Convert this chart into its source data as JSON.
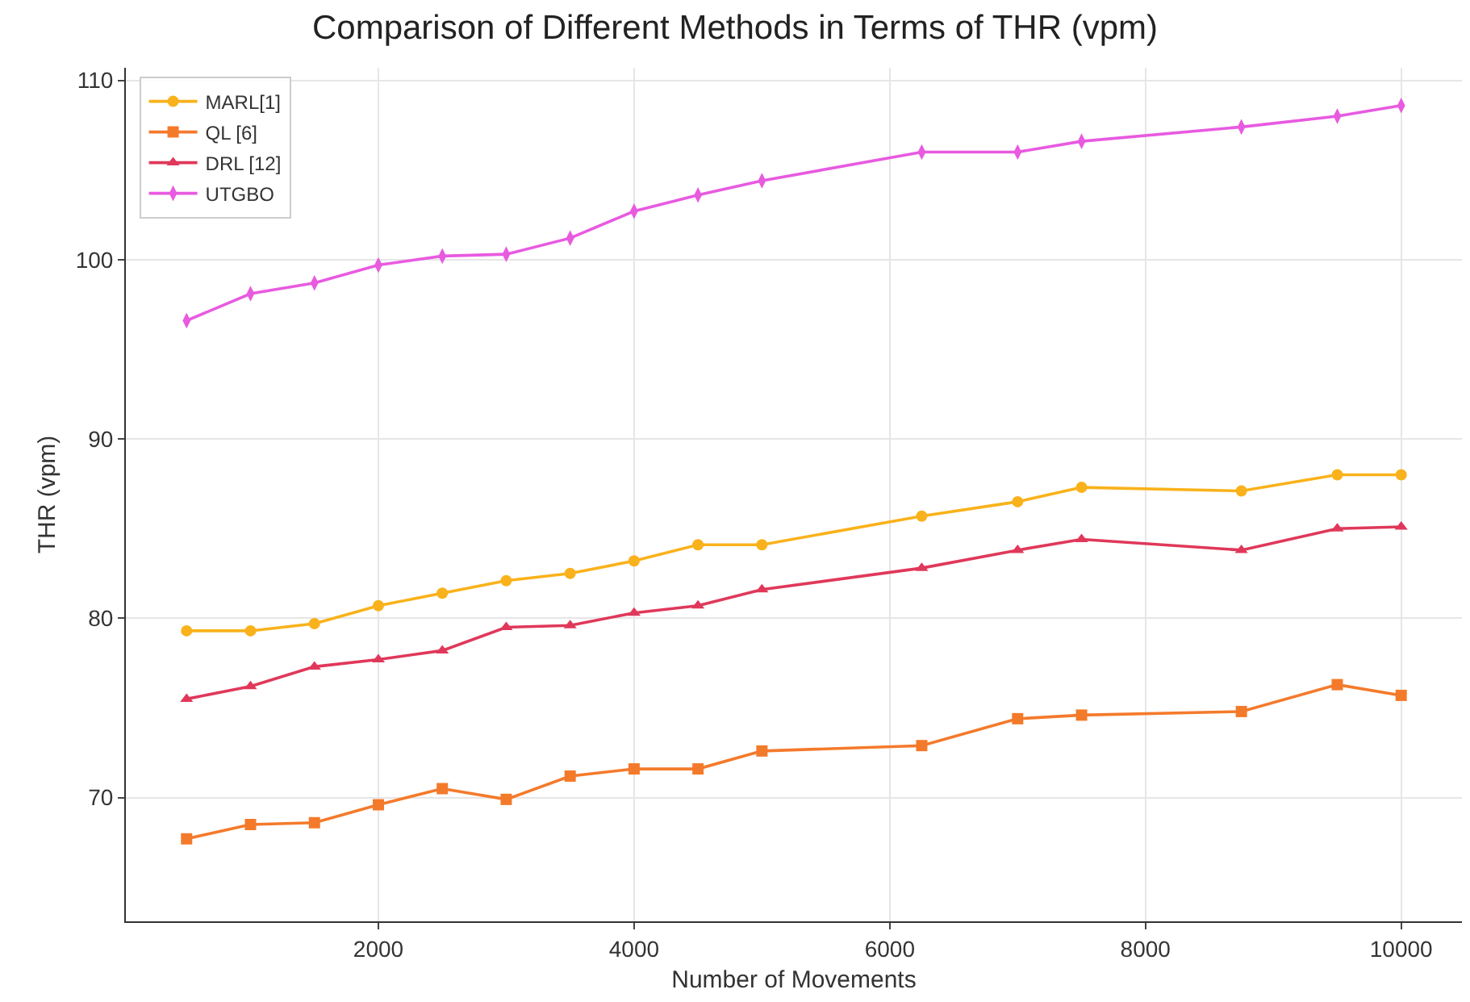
{
  "chart_data": {
    "type": "line",
    "title": "Comparison of Different Methods in Terms of THR (vpm)",
    "xlabel": "Number of Movements",
    "ylabel": "THR (vpm)",
    "x": [
      500,
      1000,
      1500,
      2000,
      2500,
      3000,
      3500,
      4000,
      4500,
      5000,
      6250,
      7000,
      7500,
      8750,
      9500,
      10000
    ],
    "series": [
      {
        "name": "MARL[1]",
        "color": "#f9b21b",
        "marker": "circle",
        "values": [
          79.3,
          79.3,
          79.7,
          80.7,
          81.4,
          82.1,
          82.5,
          83.2,
          84.1,
          84.1,
          85.7,
          86.5,
          87.3,
          87.1,
          88.0,
          88.0
        ]
      },
      {
        "name": "QL [6]",
        "color": "#f47a2b",
        "marker": "square",
        "values": [
          67.7,
          68.5,
          68.6,
          69.6,
          70.5,
          69.9,
          71.2,
          71.6,
          71.6,
          72.6,
          72.9,
          74.4,
          74.6,
          74.8,
          76.3,
          75.7
        ]
      },
      {
        "name": "DRL [12]",
        "color": "#e0385a",
        "marker": "triangle",
        "values": [
          75.5,
          76.2,
          77.3,
          77.7,
          78.2,
          79.5,
          79.6,
          80.3,
          80.7,
          81.6,
          82.8,
          83.8,
          84.4,
          83.8,
          85.0,
          85.1
        ]
      },
      {
        "name": "UTGBO",
        "color": "#e85ae0",
        "marker": "diamond",
        "values": [
          96.6,
          98.1,
          98.7,
          99.7,
          100.2,
          100.3,
          101.2,
          102.7,
          103.6,
          104.4,
          106.0,
          106.0,
          106.6,
          107.4,
          108.0,
          108.6
        ]
      }
    ],
    "xlim": [
      25,
      10475
    ],
    "xticks": [
      2000,
      4000,
      6000,
      8000,
      10000
    ],
    "ylim": [
      63.1,
      110.7
    ],
    "yticks": [
      70,
      80,
      90,
      100,
      110
    ],
    "grid": true,
    "legend": "top left",
    "line_style": "solid"
  }
}
